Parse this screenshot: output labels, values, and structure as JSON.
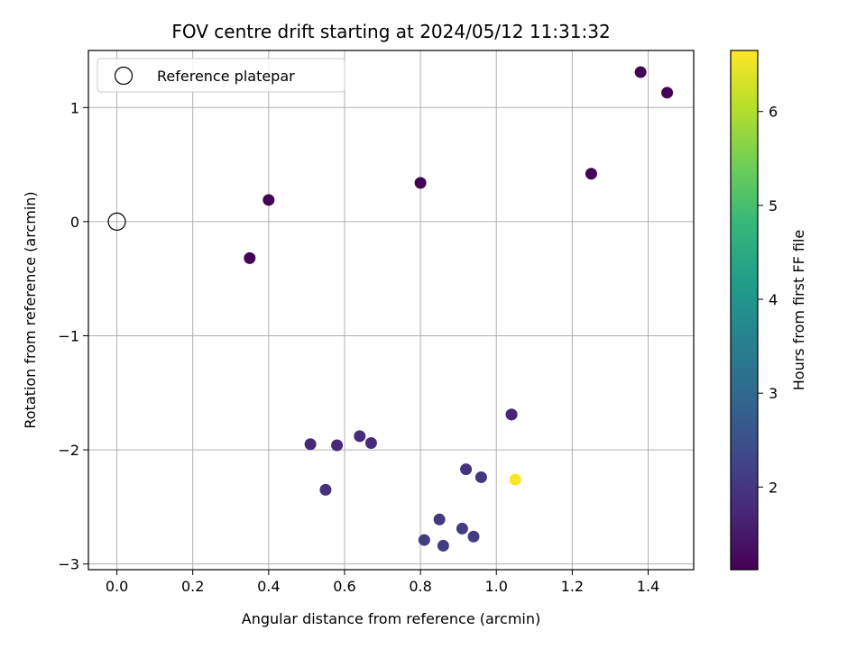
{
  "chart_data": {
    "type": "scatter",
    "title": "FOV centre drift starting at 2024/05/12 11:31:32",
    "xlabel": "Angular distance from reference (arcmin)",
    "ylabel": "Rotation from reference (arcmin)",
    "xlim": [
      -0.075,
      1.52
    ],
    "ylim": [
      -3.05,
      1.5
    ],
    "xticks": [
      0.0,
      0.2,
      0.4,
      0.6,
      0.8,
      1.0,
      1.2,
      1.4
    ],
    "xtick_labels": [
      "0.0",
      "0.2",
      "0.4",
      "0.6",
      "0.8",
      "1.0",
      "1.2",
      "1.4"
    ],
    "yticks": [
      1,
      0,
      -1,
      -2,
      -3
    ],
    "ytick_labels": [
      "1",
      "0",
      "−1",
      "−2",
      "−3"
    ],
    "grid": true,
    "legend": {
      "placement": "top-left",
      "entries": [
        "Reference platepar"
      ]
    },
    "reference_point": {
      "x": 0.0,
      "y": 0.0
    },
    "colorbar": {
      "label": "Hours from first FF file",
      "colormap": "viridis",
      "range": [
        1.12,
        6.65
      ],
      "ticks": [
        2,
        3,
        4,
        5,
        6
      ],
      "tick_labels": [
        "2",
        "3",
        "4",
        "5",
        "6"
      ]
    },
    "points": [
      {
        "x": 0.35,
        "y": -0.32,
        "hours": 1.15
      },
      {
        "x": 0.4,
        "y": 0.19,
        "hours": 1.15
      },
      {
        "x": 0.8,
        "y": 0.34,
        "hours": 1.15
      },
      {
        "x": 1.25,
        "y": 0.42,
        "hours": 1.15
      },
      {
        "x": 1.38,
        "y": 1.31,
        "hours": 1.15
      },
      {
        "x": 1.45,
        "y": 1.13,
        "hours": 1.15
      },
      {
        "x": 0.51,
        "y": -1.95,
        "hours": 1.75
      },
      {
        "x": 0.58,
        "y": -1.96,
        "hours": 1.75
      },
      {
        "x": 0.64,
        "y": -1.88,
        "hours": 1.8
      },
      {
        "x": 0.67,
        "y": -1.94,
        "hours": 1.8
      },
      {
        "x": 0.55,
        "y": -2.35,
        "hours": 1.9
      },
      {
        "x": 1.04,
        "y": -1.69,
        "hours": 1.7
      },
      {
        "x": 1.04,
        "y": -1.69,
        "hours": 1.7
      },
      {
        "x": 0.92,
        "y": -2.17,
        "hours": 1.95
      },
      {
        "x": 0.96,
        "y": -2.24,
        "hours": 2.0
      },
      {
        "x": 0.85,
        "y": -2.61,
        "hours": 2.05
      },
      {
        "x": 0.81,
        "y": -2.79,
        "hours": 2.1
      },
      {
        "x": 0.86,
        "y": -2.84,
        "hours": 2.1
      },
      {
        "x": 0.91,
        "y": -2.69,
        "hours": 2.1
      },
      {
        "x": 0.94,
        "y": -2.76,
        "hours": 2.1
      },
      {
        "x": 1.05,
        "y": -2.26,
        "hours": 6.6
      }
    ]
  }
}
